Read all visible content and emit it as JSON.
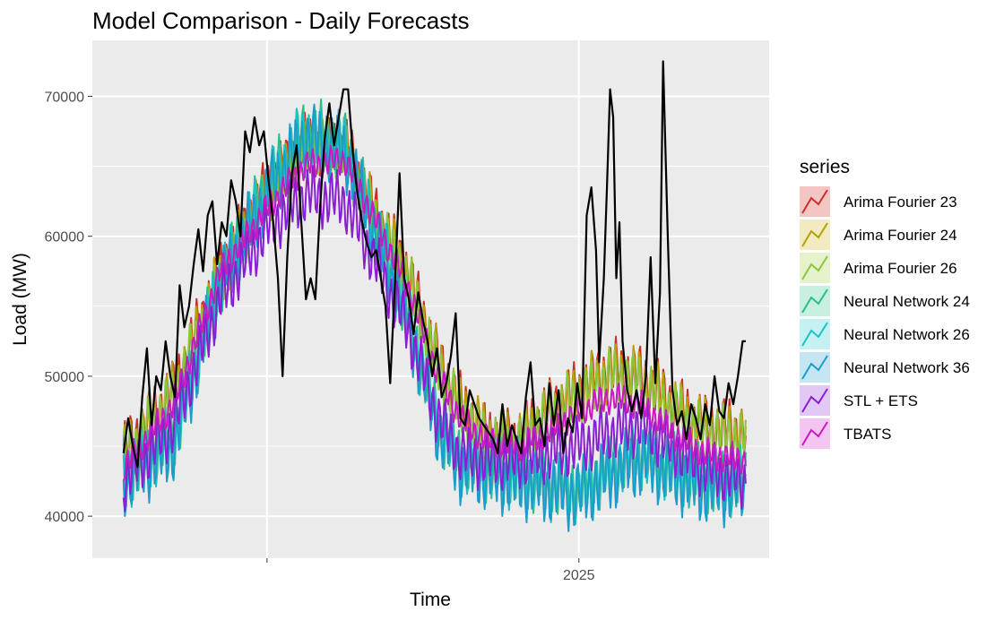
{
  "chart_data": {
    "type": "line",
    "title": "Model Comparison - Daily Forecasts",
    "xlabel": "Time",
    "ylabel": "Load (MW)",
    "x_tick_labels": [
      "2025"
    ],
    "x_tick_label_positions": [
      2025.0
    ],
    "x_grid_major": [
      2024.0,
      2025.0
    ],
    "x_grid_minor": [],
    "xlim": [
      2023.44,
      2025.61
    ],
    "ylim": [
      37000,
      74000
    ],
    "y_ticks": [
      40000,
      50000,
      60000,
      70000
    ],
    "y_tick_labels": [
      "40000",
      "50000",
      "60000",
      "70000"
    ],
    "grid": true,
    "legend_title": "series",
    "legend_position": "right",
    "actual": {
      "color": "#000000",
      "points": [
        [
          2023.54,
          44500
        ],
        [
          2023.555,
          47000
        ],
        [
          2023.57,
          45000
        ],
        [
          2023.585,
          43500
        ],
        [
          2023.6,
          48500
        ],
        [
          2023.615,
          52000
        ],
        [
          2023.63,
          46500
        ],
        [
          2023.645,
          50000
        ],
        [
          2023.66,
          49000
        ],
        [
          2023.675,
          52500
        ],
        [
          2023.69,
          50000
        ],
        [
          2023.705,
          48500
        ],
        [
          2023.72,
          56500
        ],
        [
          2023.735,
          53500
        ],
        [
          2023.75,
          55000
        ],
        [
          2023.765,
          58000
        ],
        [
          2023.78,
          60500
        ],
        [
          2023.795,
          57500
        ],
        [
          2023.81,
          61500
        ],
        [
          2023.825,
          62500
        ],
        [
          2023.84,
          58000
        ],
        [
          2023.855,
          61000
        ],
        [
          2023.87,
          60000
        ],
        [
          2023.885,
          64000
        ],
        [
          2023.9,
          62500
        ],
        [
          2023.915,
          60000
        ],
        [
          2023.93,
          67500
        ],
        [
          2023.945,
          66000
        ],
        [
          2023.96,
          68500
        ],
        [
          2023.975,
          66500
        ],
        [
          2023.99,
          67500
        ],
        [
          2024.005,
          64000
        ],
        [
          2024.02,
          61000
        ],
        [
          2024.035,
          57000
        ],
        [
          2024.05,
          50000
        ],
        [
          2024.065,
          58500
        ],
        [
          2024.08,
          64500
        ],
        [
          2024.095,
          66500
        ],
        [
          2024.11,
          61000
        ],
        [
          2024.125,
          55500
        ],
        [
          2024.14,
          57000
        ],
        [
          2024.155,
          55500
        ],
        [
          2024.17,
          62000
        ],
        [
          2024.185,
          67000
        ],
        [
          2024.2,
          69500
        ],
        [
          2024.215,
          66500
        ],
        [
          2024.23,
          68500
        ],
        [
          2024.245,
          70500
        ],
        [
          2024.26,
          70500
        ],
        [
          2024.275,
          66000
        ],
        [
          2024.29,
          63000
        ],
        [
          2024.305,
          61000
        ],
        [
          2024.32,
          59500
        ],
        [
          2024.335,
          58500
        ],
        [
          2024.35,
          59000
        ],
        [
          2024.365,
          57000
        ],
        [
          2024.38,
          55000
        ],
        [
          2024.395,
          49500
        ],
        [
          2024.41,
          56500
        ],
        [
          2024.425,
          64500
        ],
        [
          2024.44,
          57000
        ],
        [
          2024.455,
          55500
        ],
        [
          2024.47,
          53000
        ],
        [
          2024.485,
          56000
        ],
        [
          2024.5,
          54000
        ],
        [
          2024.515,
          52500
        ],
        [
          2024.53,
          50000
        ],
        [
          2024.545,
          52000
        ],
        [
          2024.56,
          48500
        ],
        [
          2024.575,
          49500
        ],
        [
          2024.59,
          51500
        ],
        [
          2024.605,
          54500
        ],
        [
          2024.62,
          47000
        ],
        [
          2024.635,
          46500
        ],
        [
          2024.65,
          49000
        ],
        [
          2024.665,
          48000
        ],
        [
          2024.68,
          47000
        ],
        [
          2024.695,
          46500
        ],
        [
          2024.71,
          46000
        ],
        [
          2024.725,
          45500
        ],
        [
          2024.74,
          44500
        ],
        [
          2024.755,
          48000
        ],
        [
          2024.77,
          45000
        ],
        [
          2024.785,
          46500
        ],
        [
          2024.8,
          45500
        ],
        [
          2024.815,
          44500
        ],
        [
          2024.83,
          48500
        ],
        [
          2024.845,
          51000
        ],
        [
          2024.86,
          46500
        ],
        [
          2024.875,
          47000
        ],
        [
          2024.89,
          45000
        ],
        [
          2024.905,
          49500
        ],
        [
          2024.92,
          46500
        ],
        [
          2024.935,
          49000
        ],
        [
          2024.95,
          44500
        ],
        [
          2024.965,
          47000
        ],
        [
          2024.98,
          46000
        ],
        [
          2024.995,
          49500
        ],
        [
          2025.01,
          47000
        ],
        [
          2025.025,
          61500
        ],
        [
          2025.04,
          63500
        ],
        [
          2025.055,
          59000
        ],
        [
          2025.065,
          51000
        ],
        [
          2025.08,
          57000
        ],
        [
          2025.09,
          63500
        ],
        [
          2025.1,
          70500
        ],
        [
          2025.11,
          68500
        ],
        [
          2025.12,
          57000
        ],
        [
          2025.13,
          61000
        ],
        [
          2025.14,
          52500
        ],
        [
          2025.155,
          49000
        ],
        [
          2025.17,
          47500
        ],
        [
          2025.185,
          49000
        ],
        [
          2025.2,
          47000
        ],
        [
          2025.215,
          50000
        ],
        [
          2025.23,
          58500
        ],
        [
          2025.245,
          49500
        ],
        [
          2025.26,
          56000
        ],
        [
          2025.27,
          72500
        ],
        [
          2025.285,
          60000
        ],
        [
          2025.3,
          49000
        ],
        [
          2025.315,
          46500
        ],
        [
          2025.33,
          47500
        ],
        [
          2025.345,
          45500
        ],
        [
          2025.36,
          48000
        ],
        [
          2025.375,
          47000
        ],
        [
          2025.39,
          45500
        ],
        [
          2025.405,
          48000
        ],
        [
          2025.42,
          46500
        ],
        [
          2025.435,
          50000
        ],
        [
          2025.45,
          47500
        ],
        [
          2025.465,
          47000
        ],
        [
          2025.48,
          49500
        ],
        [
          2025.495,
          48000
        ],
        [
          2025.51,
          50000
        ],
        [
          2025.525,
          52500
        ],
        [
          2025.535,
          52500
        ]
      ]
    },
    "series": [
      {
        "name": "Arima Fourier 23",
        "color": "#C9302C",
        "fill": "#F2C6C3",
        "points": [
          [
            2023.54,
            44500
          ],
          [
            2023.7,
            49000
          ],
          [
            2023.85,
            57500
          ],
          [
            2024.0,
            63500
          ],
          [
            2024.12,
            66500
          ],
          [
            2024.25,
            66500
          ],
          [
            2024.35,
            61500
          ],
          [
            2024.45,
            57500
          ],
          [
            2024.55,
            51000
          ],
          [
            2024.62,
            48000
          ],
          [
            2024.7,
            46000
          ],
          [
            2024.8,
            45500
          ],
          [
            2024.9,
            47500
          ],
          [
            2025.0,
            49000
          ],
          [
            2025.1,
            50500
          ],
          [
            2025.2,
            50000
          ],
          [
            2025.3,
            48000
          ],
          [
            2025.4,
            46500
          ],
          [
            2025.535,
            46000
          ]
        ],
        "amp": 1800,
        "period": 0.0192,
        "phase": 0.2
      },
      {
        "name": "Arima Fourier 24",
        "color": "#B5A000",
        "fill": "#F2EBC2",
        "points": [
          [
            2023.54,
            44200
          ],
          [
            2023.7,
            48800
          ],
          [
            2023.85,
            57200
          ],
          [
            2024.0,
            63200
          ],
          [
            2024.12,
            66200
          ],
          [
            2024.25,
            66200
          ],
          [
            2024.35,
            61200
          ],
          [
            2024.45,
            57200
          ],
          [
            2024.55,
            50800
          ],
          [
            2024.62,
            47800
          ],
          [
            2024.7,
            45800
          ],
          [
            2024.8,
            45300
          ],
          [
            2024.9,
            47300
          ],
          [
            2025.0,
            48800
          ],
          [
            2025.1,
            50200
          ],
          [
            2025.2,
            49800
          ],
          [
            2025.3,
            47800
          ],
          [
            2025.4,
            46300
          ],
          [
            2025.535,
            45800
          ]
        ],
        "amp": 1800,
        "period": 0.0192,
        "phase": 0.6
      },
      {
        "name": "Arima Fourier 26",
        "color": "#8CC63F",
        "fill": "#E5F2CC",
        "points": [
          [
            2023.54,
            44000
          ],
          [
            2023.7,
            48500
          ],
          [
            2023.85,
            57000
          ],
          [
            2024.0,
            63000
          ],
          [
            2024.12,
            66000
          ],
          [
            2024.25,
            66000
          ],
          [
            2024.35,
            61000
          ],
          [
            2024.45,
            57000
          ],
          [
            2024.55,
            50500
          ],
          [
            2024.62,
            47500
          ],
          [
            2024.7,
            45500
          ],
          [
            2024.8,
            45000
          ],
          [
            2024.9,
            47000
          ],
          [
            2025.0,
            48500
          ],
          [
            2025.1,
            50000
          ],
          [
            2025.2,
            49500
          ],
          [
            2025.3,
            47500
          ],
          [
            2025.4,
            46000
          ],
          [
            2025.535,
            45500
          ]
        ],
        "amp": 1700,
        "period": 0.0192,
        "phase": 1.1
      },
      {
        "name": "Neural Network 24",
        "color": "#2DBE86",
        "fill": "#C8F0DF",
        "points": [
          [
            2023.54,
            43000
          ],
          [
            2023.7,
            45500
          ],
          [
            2023.85,
            57000
          ],
          [
            2024.0,
            63500
          ],
          [
            2024.12,
            67500
          ],
          [
            2024.25,
            66500
          ],
          [
            2024.35,
            60500
          ],
          [
            2024.45,
            54500
          ],
          [
            2024.55,
            46500
          ],
          [
            2024.62,
            44000
          ],
          [
            2024.7,
            43500
          ],
          [
            2024.8,
            43000
          ],
          [
            2024.9,
            42500
          ],
          [
            2025.0,
            42000
          ],
          [
            2025.1,
            43500
          ],
          [
            2025.2,
            44500
          ],
          [
            2025.3,
            43500
          ],
          [
            2025.4,
            42500
          ],
          [
            2025.535,
            42500
          ]
        ],
        "amp": 2000,
        "period": 0.0192,
        "phase": 1.7
      },
      {
        "name": "Neural Network 26",
        "color": "#17C4C8",
        "fill": "#C6F1F2",
        "points": [
          [
            2023.54,
            42800
          ],
          [
            2023.7,
            45300
          ],
          [
            2023.85,
            56800
          ],
          [
            2024.0,
            63300
          ],
          [
            2024.12,
            67300
          ],
          [
            2024.25,
            66300
          ],
          [
            2024.35,
            60300
          ],
          [
            2024.45,
            54300
          ],
          [
            2024.55,
            46300
          ],
          [
            2024.62,
            43800
          ],
          [
            2024.7,
            43300
          ],
          [
            2024.8,
            42800
          ],
          [
            2024.9,
            42300
          ],
          [
            2025.0,
            41800
          ],
          [
            2025.1,
            43300
          ],
          [
            2025.2,
            44300
          ],
          [
            2025.3,
            43300
          ],
          [
            2025.4,
            42300
          ],
          [
            2025.535,
            42300
          ]
        ],
        "amp": 2000,
        "period": 0.0192,
        "phase": 2.3
      },
      {
        "name": "Neural Network 36",
        "color": "#1D9CC9",
        "fill": "#C5E5F2",
        "points": [
          [
            2023.54,
            42500
          ],
          [
            2023.7,
            45000
          ],
          [
            2023.85,
            56500
          ],
          [
            2024.0,
            63000
          ],
          [
            2024.12,
            67000
          ],
          [
            2024.25,
            66000
          ],
          [
            2024.35,
            60000
          ],
          [
            2024.45,
            54000
          ],
          [
            2024.55,
            46000
          ],
          [
            2024.62,
            43500
          ],
          [
            2024.7,
            43000
          ],
          [
            2024.8,
            42500
          ],
          [
            2024.9,
            42000
          ],
          [
            2025.0,
            41500
          ],
          [
            2025.1,
            43000
          ],
          [
            2025.2,
            44000
          ],
          [
            2025.3,
            43000
          ],
          [
            2025.4,
            42000
          ],
          [
            2025.535,
            42000
          ]
        ],
        "amp": 2100,
        "period": 0.0192,
        "phase": 2.9
      },
      {
        "name": "STL + ETS",
        "color": "#8A1FD1",
        "fill": "#E2C8F4",
        "points": [
          [
            2023.54,
            42500
          ],
          [
            2023.7,
            46500
          ],
          [
            2023.85,
            55500
          ],
          [
            2024.0,
            60500
          ],
          [
            2024.12,
            63000
          ],
          [
            2024.25,
            62500
          ],
          [
            2024.35,
            58000
          ],
          [
            2024.45,
            53500
          ],
          [
            2024.55,
            47000
          ],
          [
            2024.62,
            44500
          ],
          [
            2024.7,
            44000
          ],
          [
            2024.8,
            44000
          ],
          [
            2024.9,
            44500
          ],
          [
            2025.0,
            45000
          ],
          [
            2025.1,
            46000
          ],
          [
            2025.2,
            46500
          ],
          [
            2025.3,
            45000
          ],
          [
            2025.4,
            43500
          ],
          [
            2025.535,
            42500
          ]
        ],
        "amp": 1700,
        "period": 0.0192,
        "phase": 3.5
      },
      {
        "name": "TBATS",
        "color": "#C71BBF",
        "fill": "#F2C6F0",
        "points": [
          [
            2023.54,
            43500
          ],
          [
            2023.7,
            48000
          ],
          [
            2023.85,
            57500
          ],
          [
            2024.0,
            62000
          ],
          [
            2024.12,
            65000
          ],
          [
            2024.25,
            65500
          ],
          [
            2024.35,
            61000
          ],
          [
            2024.45,
            56500
          ],
          [
            2024.55,
            50000
          ],
          [
            2024.62,
            47000
          ],
          [
            2024.7,
            45500
          ],
          [
            2024.8,
            45000
          ],
          [
            2024.9,
            46000
          ],
          [
            2025.0,
            47500
          ],
          [
            2025.1,
            48500
          ],
          [
            2025.2,
            48000
          ],
          [
            2025.3,
            46000
          ],
          [
            2025.4,
            44500
          ],
          [
            2025.535,
            44000
          ]
        ],
        "amp": 900,
        "period": 0.0192,
        "phase": 4.0
      }
    ]
  }
}
